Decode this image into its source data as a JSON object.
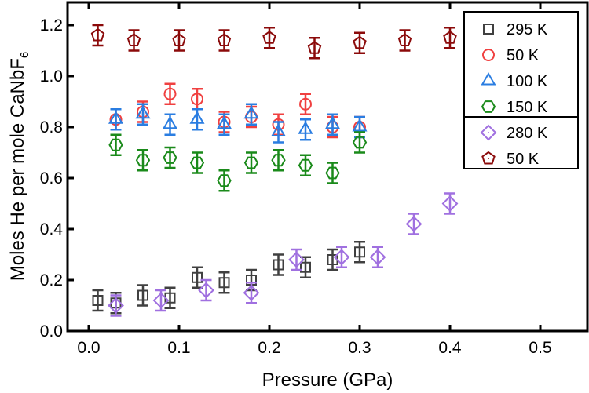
{
  "chart_data": {
    "type": "scatter",
    "xlabel": "Pressure (GPa)",
    "ylabel": "Moles He per mole CaNbF",
    "ylabel_sub": "6",
    "xlim": [
      -0.024,
      0.554
    ],
    "ylim": [
      0,
      1.29
    ],
    "xticks": [
      "0.0",
      "0.1",
      "0.2",
      "0.3",
      "0.4",
      "0.5"
    ],
    "yticks": [
      "0.0",
      "0.2",
      "0.4",
      "0.6",
      "0.8",
      "1.0",
      "1.2"
    ],
    "legend_placement": "top-right",
    "error": 0.04,
    "series": [
      {
        "name": "295 K",
        "marker": "square",
        "color": "#404040",
        "x": [
          0.01,
          0.03,
          0.06,
          0.09,
          0.12,
          0.15,
          0.18,
          0.21,
          0.24,
          0.27,
          0.3
        ],
        "y": [
          0.12,
          0.11,
          0.14,
          0.13,
          0.21,
          0.19,
          0.2,
          0.26,
          0.25,
          0.28,
          0.31
        ]
      },
      {
        "name": "50 K",
        "marker": "circle",
        "color": "#f04040",
        "x": [
          0.03,
          0.06,
          0.09,
          0.12,
          0.15,
          0.18,
          0.21,
          0.24,
          0.27,
          0.3
        ],
        "y": [
          0.83,
          0.86,
          0.93,
          0.91,
          0.82,
          0.84,
          0.81,
          0.89,
          0.8,
          0.8
        ]
      },
      {
        "name": "100 K",
        "marker": "triangle",
        "color": "#2a7de1",
        "x": [
          0.03,
          0.06,
          0.09,
          0.12,
          0.15,
          0.18,
          0.21,
          0.24,
          0.27,
          0.3
        ],
        "y": [
          0.83,
          0.85,
          0.81,
          0.83,
          0.81,
          0.85,
          0.78,
          0.79,
          0.81,
          0.8
        ]
      },
      {
        "name": "150 K",
        "marker": "hexagon",
        "color": "#1a8a1a",
        "x": [
          0.03,
          0.06,
          0.09,
          0.12,
          0.15,
          0.18,
          0.21,
          0.24,
          0.27,
          0.3
        ],
        "y": [
          0.73,
          0.67,
          0.68,
          0.66,
          0.59,
          0.66,
          0.67,
          0.65,
          0.62,
          0.74
        ]
      },
      {
        "name": "280 K",
        "marker": "diamond",
        "color": "#a070e0",
        "x": [
          0.03,
          0.08,
          0.13,
          0.18,
          0.23,
          0.28,
          0.32,
          0.36,
          0.4
        ],
        "y": [
          0.1,
          0.12,
          0.16,
          0.15,
          0.28,
          0.29,
          0.29,
          0.42,
          0.5
        ]
      },
      {
        "name": "50 K",
        "marker": "pentagon",
        "color": "#8b0a0a",
        "x": [
          0.01,
          0.05,
          0.1,
          0.15,
          0.2,
          0.25,
          0.3,
          0.35,
          0.4
        ],
        "y": [
          1.16,
          1.14,
          1.14,
          1.14,
          1.15,
          1.11,
          1.13,
          1.14,
          1.15
        ]
      }
    ]
  }
}
